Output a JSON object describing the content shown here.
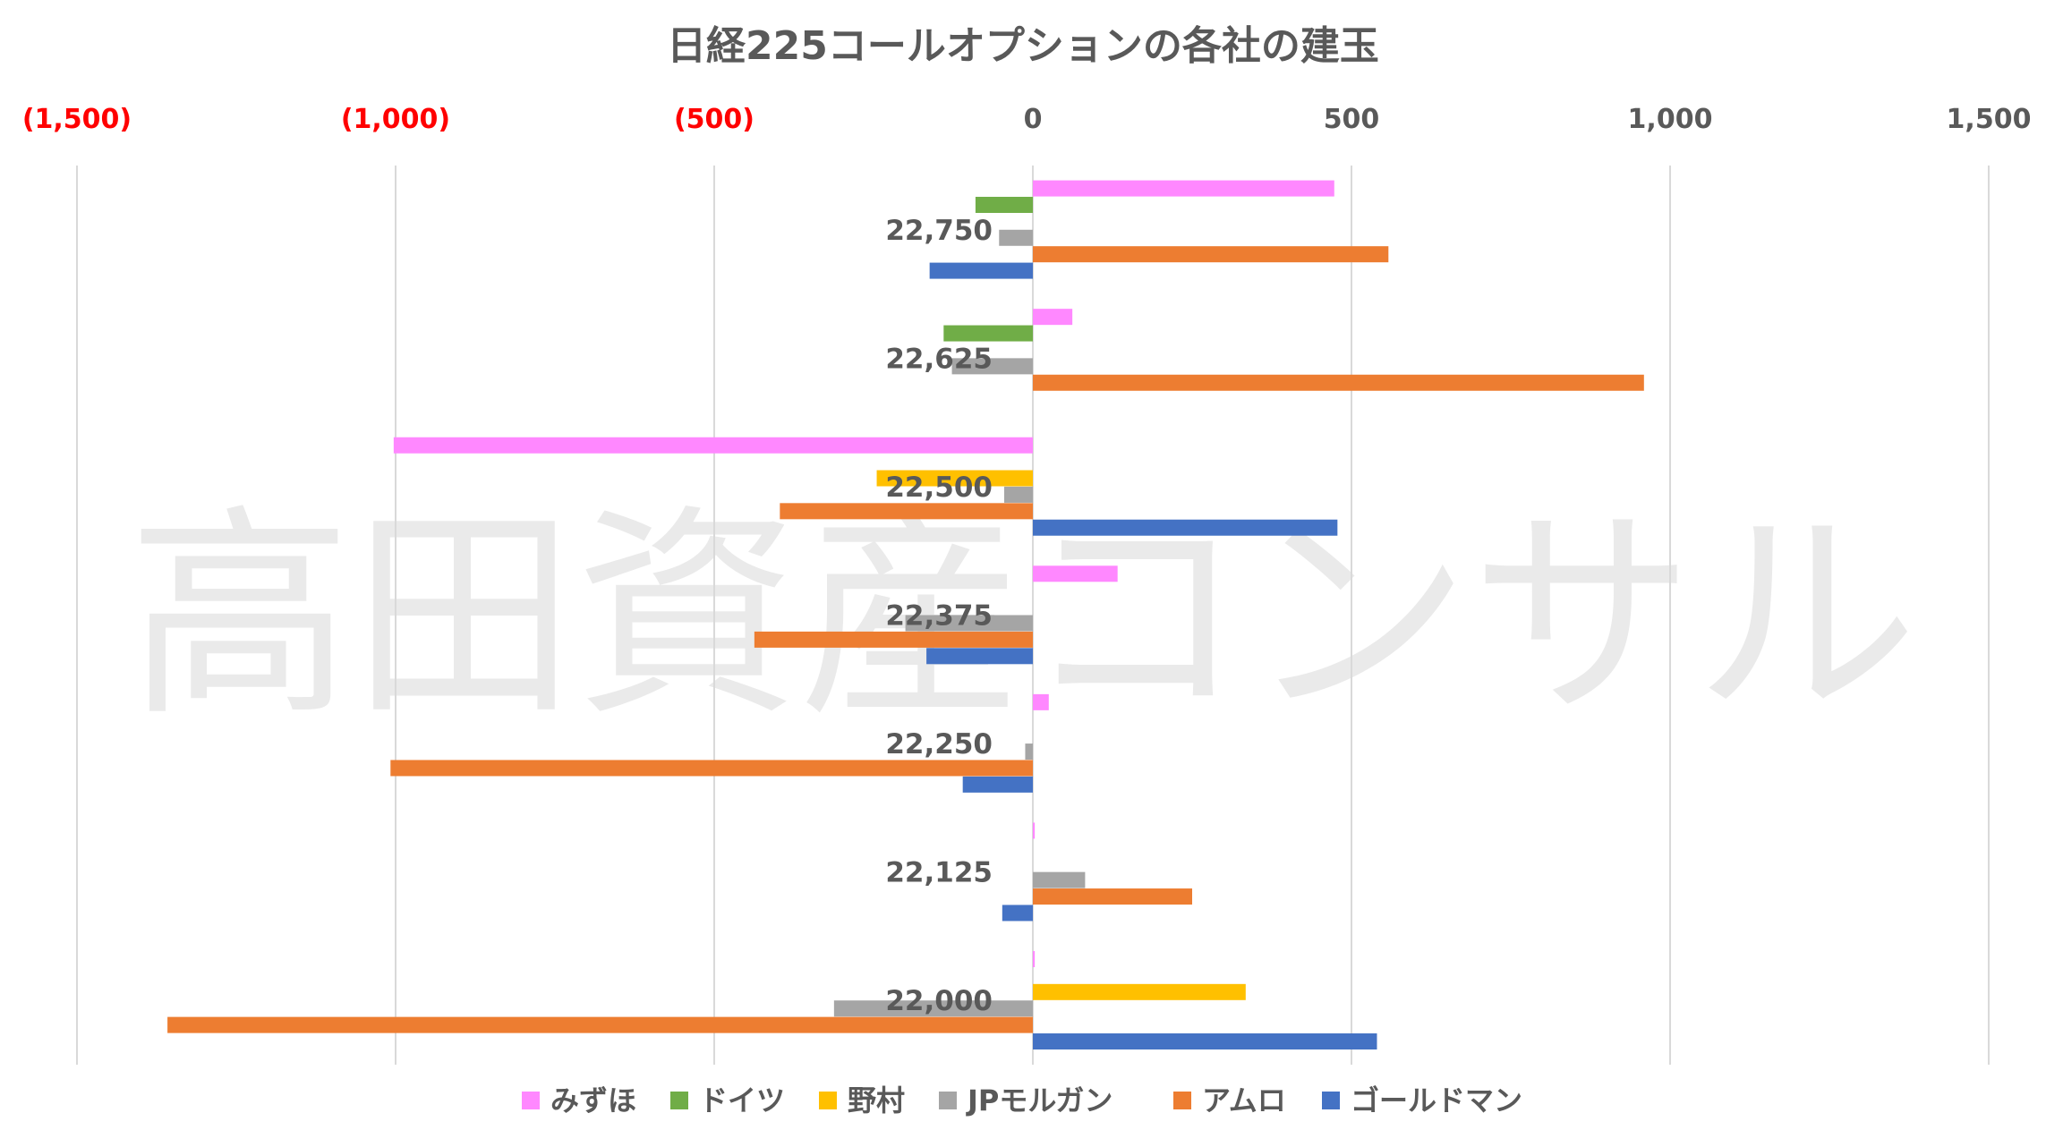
{
  "chart_data": {
    "type": "bar",
    "orientation": "horizontal",
    "title": "日経225コールオプションの各社の建玉",
    "watermark": "高田資産コンサル",
    "categories": [
      "22,750",
      "22,625",
      "22,500",
      "22,375",
      "22,250",
      "22,125",
      "22,000"
    ],
    "xlim": [
      -1500,
      1500
    ],
    "x_ticks": [
      {
        "value": -1500,
        "label": "(1,500)",
        "color": "#ff0000"
      },
      {
        "value": -1000,
        "label": "(1,000)",
        "color": "#ff0000"
      },
      {
        "value": -500,
        "label": "(500)",
        "color": "#ff0000"
      },
      {
        "value": 0,
        "label": "0",
        "color": "#595959"
      },
      {
        "value": 500,
        "label": "500",
        "color": "#595959"
      },
      {
        "value": 1000,
        "label": "1,000",
        "color": "#595959"
      },
      {
        "value": 1500,
        "label": "1,500",
        "color": "#595959"
      }
    ],
    "grid": true,
    "legend_position": "bottom",
    "series": [
      {
        "name": "みずほ",
        "color": "#ff88ff",
        "values": [
          473,
          62,
          -1003,
          133,
          25,
          3,
          3
        ]
      },
      {
        "name": "ドイツ",
        "color": "#70ad47",
        "values": [
          -90,
          -140,
          0,
          0,
          0,
          0,
          0
        ]
      },
      {
        "name": "野村",
        "color": "#ffc000",
        "values": [
          0,
          0,
          -245,
          0,
          0,
          0,
          334
        ]
      },
      {
        "name": "JPモルガン",
        "color": "#a5a5a5",
        "values": [
          -53,
          -127,
          -45,
          -200,
          -12,
          82,
          -312
        ]
      },
      {
        "name": "アムロ",
        "color": "#ed7d31",
        "values": [
          558,
          959,
          -397,
          -437,
          -1008,
          250,
          -1358
        ]
      },
      {
        "name": "ゴールドマン",
        "color": "#4472c4",
        "values": [
          -162,
          0,
          478,
          -167,
          -110,
          -48,
          540
        ]
      }
    ]
  }
}
